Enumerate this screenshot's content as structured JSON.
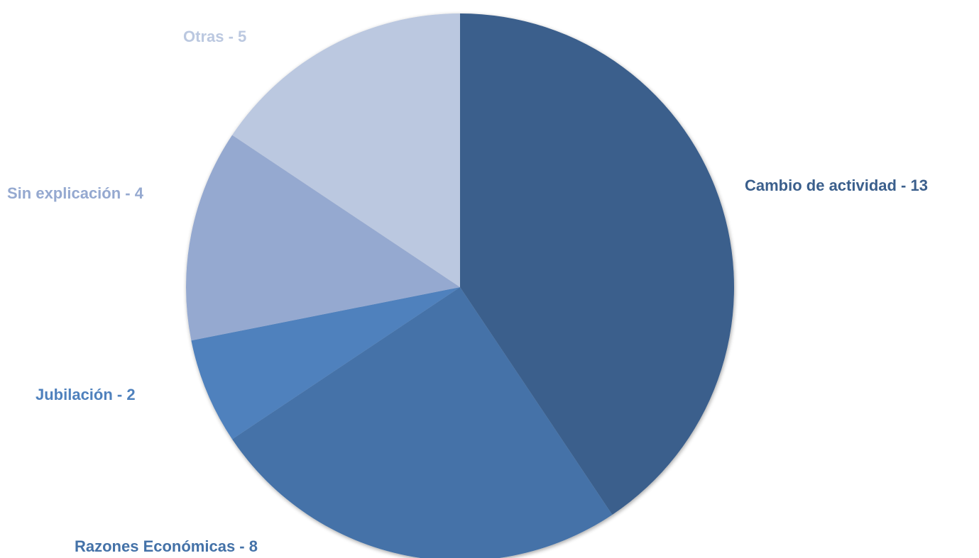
{
  "chart_data": {
    "type": "pie",
    "title": "",
    "start_angle_deg": 0,
    "direction": "clockwise",
    "slices": [
      {
        "label": "Cambio de actividad",
        "value": 13,
        "text": "Cambio de actividad - 13",
        "color": "#3B5F8C",
        "label_color": "#3B5F8C"
      },
      {
        "label": "Razones Económicas",
        "value": 8,
        "text": "Razones Económicas - 8",
        "color": "#4472A8",
        "label_color": "#4472A8"
      },
      {
        "label": "Jubilación",
        "value": 2,
        "text": "Jubilación - 2",
        "color": "#4F81BD",
        "label_color": "#4F81BD"
      },
      {
        "label": "Sin explicación",
        "value": 4,
        "text": "Sin explicación - 4",
        "color": "#95A9D0",
        "label_color": "#95A9D0"
      },
      {
        "label": "Otras",
        "value": 5,
        "text": "Otras - 5",
        "color": "#BBC8E0",
        "label_color": "#BBC8E0"
      }
    ],
    "legend": "none"
  }
}
